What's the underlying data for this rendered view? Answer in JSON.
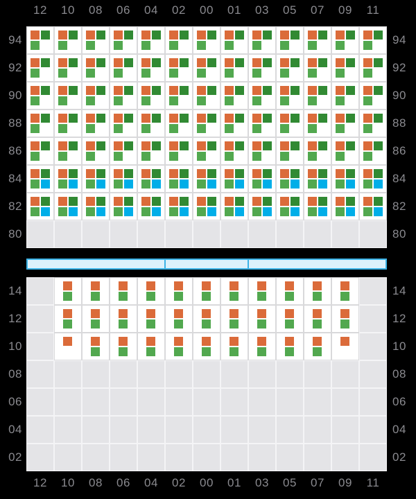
{
  "colors": {
    "background": "#000000",
    "label_gray": "#8A8A8F",
    "cell_white": "#FFFFFF",
    "cell_empty": "#E4E4E7",
    "cell_border_white": "#D9D9DB",
    "cell_border_empty": "#F4F4F6",
    "orange": "#DB6B3A",
    "dark_green": "#318A33",
    "light_green": "#52A84F",
    "blue": "#00AEE8",
    "bar_fill": "#DDF1FB",
    "bar_border": "#3AB2E6"
  },
  "chart_data": {
    "type": "heatmap",
    "title": "",
    "x_labels": [
      "12",
      "10",
      "08",
      "06",
      "04",
      "02",
      "00",
      "01",
      "03",
      "05",
      "07",
      "09",
      "11"
    ],
    "x_labels_shown_top_and_bottom": true,
    "square_color_keys": {
      "o": "orange",
      "d": "dark_green",
      "g": "light_green",
      "b": "blue"
    },
    "square_position_meaning": {
      "quad": {
        "o": "top-left",
        "d": "top-right",
        "g": "bottom-left",
        "b": "bottom-right"
      },
      "stack": {
        "o": "top",
        "g": "bottom"
      }
    },
    "legend_position": "none",
    "grid": "on",
    "panels": [
      {
        "name": "upper",
        "layout": "quad",
        "y_labels": [
          "94",
          "92",
          "90",
          "88",
          "86",
          "84",
          "82",
          "80"
        ],
        "rows": [
          {
            "y": "94",
            "cells": [
              "odg",
              "odg",
              "odg",
              "odg",
              "odg",
              "odg",
              "odg",
              "odg",
              "odg",
              "odg",
              "odg",
              "odg",
              "odg"
            ]
          },
          {
            "y": "92",
            "cells": [
              "odg",
              "odg",
              "odg",
              "odg",
              "odg",
              "odg",
              "odg",
              "odg",
              "odg",
              "odg",
              "odg",
              "odg",
              "odg"
            ]
          },
          {
            "y": "90",
            "cells": [
              "odg",
              "odg",
              "odg",
              "odg",
              "odg",
              "odg",
              "odg",
              "odg",
              "odg",
              "odg",
              "odg",
              "odg",
              "odg"
            ]
          },
          {
            "y": "88",
            "cells": [
              "odg",
              "odg",
              "odg",
              "odg",
              "odg",
              "odg",
              "odg",
              "odg",
              "odg",
              "odg",
              "odg",
              "odg",
              "odg"
            ]
          },
          {
            "y": "86",
            "cells": [
              "odg",
              "odg",
              "odg",
              "odg",
              "odg",
              "odg",
              "odg",
              "odg",
              "odg",
              "odg",
              "odg",
              "odg",
              "odg"
            ]
          },
          {
            "y": "84",
            "cells": [
              "odgb",
              "odgb",
              "odgb",
              "odgb",
              "odgb",
              "odgb",
              "odgb",
              "odgb",
              "odgb",
              "odgb",
              "odgb",
              "odgb",
              "odgb"
            ]
          },
          {
            "y": "82",
            "cells": [
              "odgb",
              "odgb",
              "odgb",
              "odgb",
              "odgb",
              "odgb",
              "odgb",
              "odgb",
              "odgb",
              "odgb",
              "odgb",
              "odgb",
              "odgb"
            ]
          },
          {
            "y": "80",
            "cells": [
              "",
              "",
              "",
              "",
              "",
              "",
              "",
              "",
              "",
              "",
              "",
              "",
              ""
            ]
          }
        ]
      },
      {
        "name": "lower",
        "layout": "stack",
        "y_labels": [
          "14",
          "12",
          "10",
          "08",
          "06",
          "04",
          "02"
        ],
        "rows": [
          {
            "y": "14",
            "cells": [
              "",
              "og",
              "og",
              "og",
              "og",
              "og",
              "og",
              "og",
              "og",
              "og",
              "og",
              "og",
              ""
            ]
          },
          {
            "y": "12",
            "cells": [
              "",
              "og",
              "og",
              "og",
              "og",
              "og",
              "og",
              "og",
              "og",
              "og",
              "og",
              "og",
              ""
            ]
          },
          {
            "y": "10",
            "cells": [
              "",
              "o",
              "og",
              "og",
              "og",
              "og",
              "og",
              "og",
              "og",
              "og",
              "og",
              "o",
              ""
            ]
          },
          {
            "y": "08",
            "cells": [
              "",
              "",
              "",
              "",
              "",
              "",
              "",
              "",
              "",
              "",
              "",
              "",
              ""
            ]
          },
          {
            "y": "06",
            "cells": [
              "",
              "",
              "",
              "",
              "",
              "",
              "",
              "",
              "",
              "",
              "",
              "",
              ""
            ]
          },
          {
            "y": "04",
            "cells": [
              "",
              "",
              "",
              "",
              "",
              "",
              "",
              "",
              "",
              "",
              "",
              "",
              ""
            ]
          },
          {
            "y": "02",
            "cells": [
              "",
              "",
              "",
              "",
              "",
              "",
              "",
              "",
              "",
              "",
              "",
              "",
              ""
            ]
          }
        ]
      }
    ],
    "separator_bar": {
      "segments_in_columns": [
        5,
        3,
        5
      ],
      "fill": "#DDF1FB",
      "border": "#3AB2E6"
    }
  }
}
